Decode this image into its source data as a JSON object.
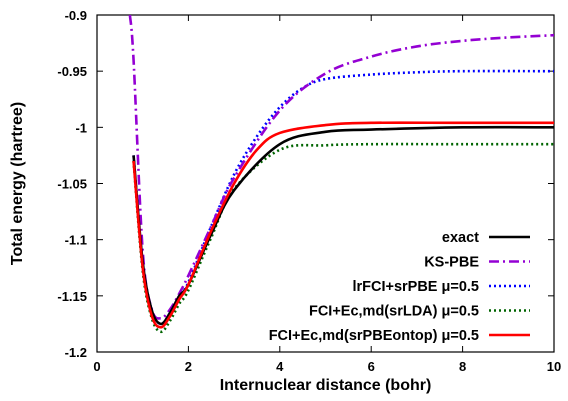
{
  "chart_data": {
    "type": "line",
    "title": "",
    "xlabel": "Internuclear distance (bohr)",
    "ylabel": "Total energy (hartree)",
    "xlim": [
      0,
      10
    ],
    "ylim": [
      -1.2,
      -0.9
    ],
    "xticks": [
      0,
      2,
      4,
      6,
      8,
      10
    ],
    "yticks": [
      -1.2,
      -1.15,
      -1.1,
      -1.05,
      -1,
      -0.95,
      -0.9
    ],
    "xtick_labels": [
      "0",
      "2",
      "4",
      "6",
      "8",
      "10"
    ],
    "ytick_labels": [
      "-1.2",
      "-1.15",
      "-1.1",
      "-1.05",
      "-1",
      "-0.95",
      "-0.9"
    ],
    "grid": false,
    "legend_position": "bottom-right",
    "series": [
      {
        "name": "exact",
        "color": "#000000",
        "dash": "solid",
        "x": [
          0.8,
          1.0,
          1.2,
          1.4,
          1.6,
          1.8,
          2.0,
          2.5,
          3.0,
          4.0,
          5.0,
          6.0,
          8.0,
          10.0
        ],
        "y": [
          -1.025,
          -1.12,
          -1.163,
          -1.175,
          -1.165,
          -1.15,
          -1.14,
          -1.095,
          -1.056,
          -1.015,
          -1.004,
          -1.002,
          -1.0,
          -1.0
        ]
      },
      {
        "name": "KS-PBE",
        "color": "#9400d3",
        "dash": "dashdot",
        "x": [
          0.72,
          0.8,
          1.0,
          1.2,
          1.4,
          1.6,
          1.8,
          2.0,
          2.5,
          3.0,
          4.0,
          5.0,
          6.0,
          7.0,
          8.0,
          9.0,
          10.0
        ],
        "y": [
          -0.9,
          -0.94,
          -1.11,
          -1.162,
          -1.17,
          -1.162,
          -1.148,
          -1.132,
          -1.088,
          -1.045,
          -0.985,
          -0.952,
          -0.937,
          -0.928,
          -0.923,
          -0.92,
          -0.918
        ]
      },
      {
        "name": "lrFCI+srPBE μ=0.5",
        "color": "#0000ff",
        "dash": "dotted",
        "x": [
          0.8,
          1.0,
          1.2,
          1.4,
          1.6,
          1.8,
          2.0,
          2.5,
          3.0,
          3.5,
          4.0,
          4.5,
          5.0,
          6.0,
          7.0,
          8.0,
          10.0
        ],
        "y": [
          -1.025,
          -1.12,
          -1.163,
          -1.175,
          -1.165,
          -1.15,
          -1.138,
          -1.088,
          -1.042,
          -1.008,
          -0.982,
          -0.965,
          -0.957,
          -0.953,
          -0.951,
          -0.95,
          -0.95
        ]
      },
      {
        "name": "FCI+Ec,md(srLDA) μ=0.5",
        "color": "#006400",
        "dash": "dotted",
        "x": [
          0.8,
          1.0,
          1.2,
          1.4,
          1.6,
          1.8,
          2.0,
          2.5,
          3.0,
          4.0,
          5.0,
          6.0,
          8.0,
          10.0
        ],
        "y": [
          -1.03,
          -1.128,
          -1.17,
          -1.182,
          -1.172,
          -1.157,
          -1.145,
          -1.098,
          -1.055,
          -1.02,
          -1.016,
          -1.015,
          -1.015,
          -1.015
        ]
      },
      {
        "name": "FCI+Ec,md(srPBEontop) μ=0.5",
        "color": "#ff0000",
        "dash": "solid",
        "x": [
          0.8,
          1.0,
          1.2,
          1.4,
          1.6,
          1.8,
          2.0,
          2.5,
          3.0,
          3.5,
          4.0,
          5.0,
          6.0,
          8.0,
          10.0
        ],
        "y": [
          -1.03,
          -1.125,
          -1.168,
          -1.178,
          -1.168,
          -1.153,
          -1.14,
          -1.092,
          -1.05,
          -1.02,
          -1.005,
          -0.998,
          -0.996,
          -0.996,
          -0.996
        ]
      }
    ]
  }
}
